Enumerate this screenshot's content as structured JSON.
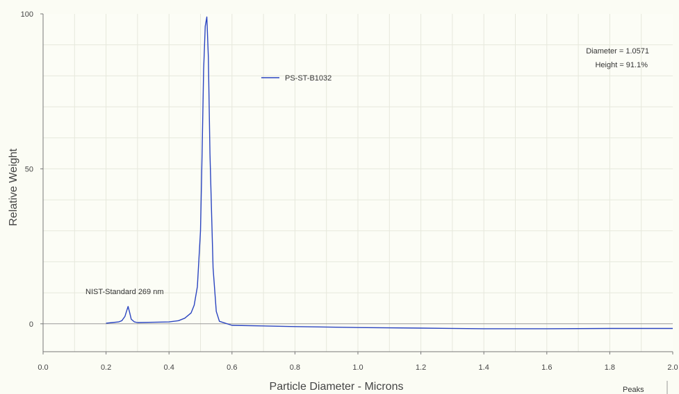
{
  "chart_data": {
    "type": "line",
    "xlabel": "Particle Diameter - Microns",
    "ylabel": "Relative Weight",
    "xlim": [
      0.0,
      2.0
    ],
    "ylim": [
      -9,
      100
    ],
    "x_ticks": [
      0.0,
      0.2,
      0.4,
      0.6,
      0.8,
      1.0,
      1.2,
      1.4,
      1.6,
      1.8,
      2.0
    ],
    "x_tick_labels": [
      "0.0",
      "0.2",
      "0.4",
      "0.6",
      "0.8",
      "1.0",
      "1.2",
      "1.4",
      "1.6",
      "1.8",
      "2.0"
    ],
    "y_ticks": [
      0,
      50,
      100
    ],
    "y_tick_labels": [
      "0",
      "50",
      "100"
    ],
    "grid": true,
    "legend_position": "top-center",
    "series": [
      {
        "name": "PS-ST-B1032",
        "color": "#2a44c0",
        "x": [
          0.2,
          0.22,
          0.24,
          0.25,
          0.26,
          0.265,
          0.27,
          0.275,
          0.28,
          0.29,
          0.3,
          0.35,
          0.4,
          0.43,
          0.45,
          0.47,
          0.48,
          0.49,
          0.5,
          0.505,
          0.51,
          0.515,
          0.52,
          0.525,
          0.53,
          0.54,
          0.55,
          0.56,
          0.6,
          0.8,
          1.0,
          1.2,
          1.4,
          1.6,
          1.8,
          2.0
        ],
        "y": [
          0.2,
          0.4,
          0.6,
          1.0,
          2.4,
          4.0,
          5.6,
          3.6,
          1.5,
          0.6,
          0.4,
          0.5,
          0.6,
          1.0,
          1.8,
          3.5,
          6.0,
          12.0,
          30.0,
          55.0,
          82.0,
          96.0,
          99.0,
          86.0,
          55.0,
          18.0,
          4.0,
          0.8,
          -0.5,
          -0.9,
          -1.2,
          -1.4,
          -1.6,
          -1.6,
          -1.5,
          -1.5
        ]
      }
    ],
    "annotations": [
      {
        "text": "NIST-Standard 269 nm",
        "x": 0.25,
        "y": 9.5
      },
      {
        "text": "Diameter = 1.0571"
      },
      {
        "text": "Height = 91.1%"
      }
    ],
    "corner_label": "Peaks"
  }
}
